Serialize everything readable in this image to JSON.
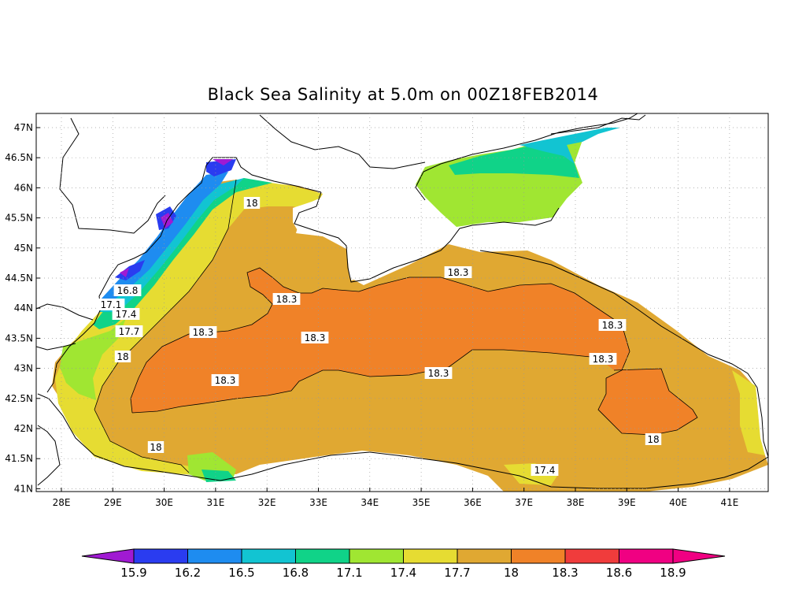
{
  "title": "Black Sea Salinity at 5.0m on 00Z18FEB2014",
  "axes": {
    "lon_ticks": [
      "28E",
      "29E",
      "30E",
      "31E",
      "32E",
      "33E",
      "34E",
      "35E",
      "36E",
      "37E",
      "38E",
      "39E",
      "40E",
      "41E"
    ],
    "lat_ticks": [
      "47N",
      "46.5N",
      "46N",
      "45.5N",
      "45N",
      "44.5N",
      "44N",
      "43.5N",
      "43N",
      "42.5N",
      "42N",
      "41.5N",
      "41N"
    ]
  },
  "colorbar": {
    "labels": [
      "15.9",
      "16.2",
      "16.5",
      "16.8",
      "17.1",
      "17.4",
      "17.7",
      "18",
      "18.3",
      "18.6",
      "18.9"
    ],
    "colors": [
      "#a01ad2",
      "#2a3cf0",
      "#1e8cf0",
      "#12c4d2",
      "#10d388",
      "#a0e632",
      "#e6dc32",
      "#e0a832",
      "#f08228",
      "#f03c3c",
      "#f00082"
    ]
  },
  "contour_labels": [
    "16.8",
    "17.1",
    "17.4",
    "17.7",
    "18",
    "18",
    "18.3",
    "18.3",
    "18.3",
    "18.3",
    "18.3",
    "18.3",
    "18.3",
    "18.3",
    "18",
    "18",
    "17.4"
  ],
  "chart_data": {
    "type": "heatmap",
    "title": "Black Sea Salinity at 5.0m on 00Z18FEB2014",
    "xlabel": "",
    "ylabel": "",
    "xlim": [
      "27.5E",
      "41.6E"
    ],
    "ylim": [
      "41N",
      "47.2N"
    ],
    "color_levels": [
      15.9,
      16.2,
      16.5,
      16.8,
      17.1,
      17.4,
      17.7,
      18,
      18.3,
      18.6,
      18.9
    ],
    "contour_levels_labeled": [
      16.8,
      17.1,
      17.4,
      17.7,
      18,
      18.3
    ]
  }
}
